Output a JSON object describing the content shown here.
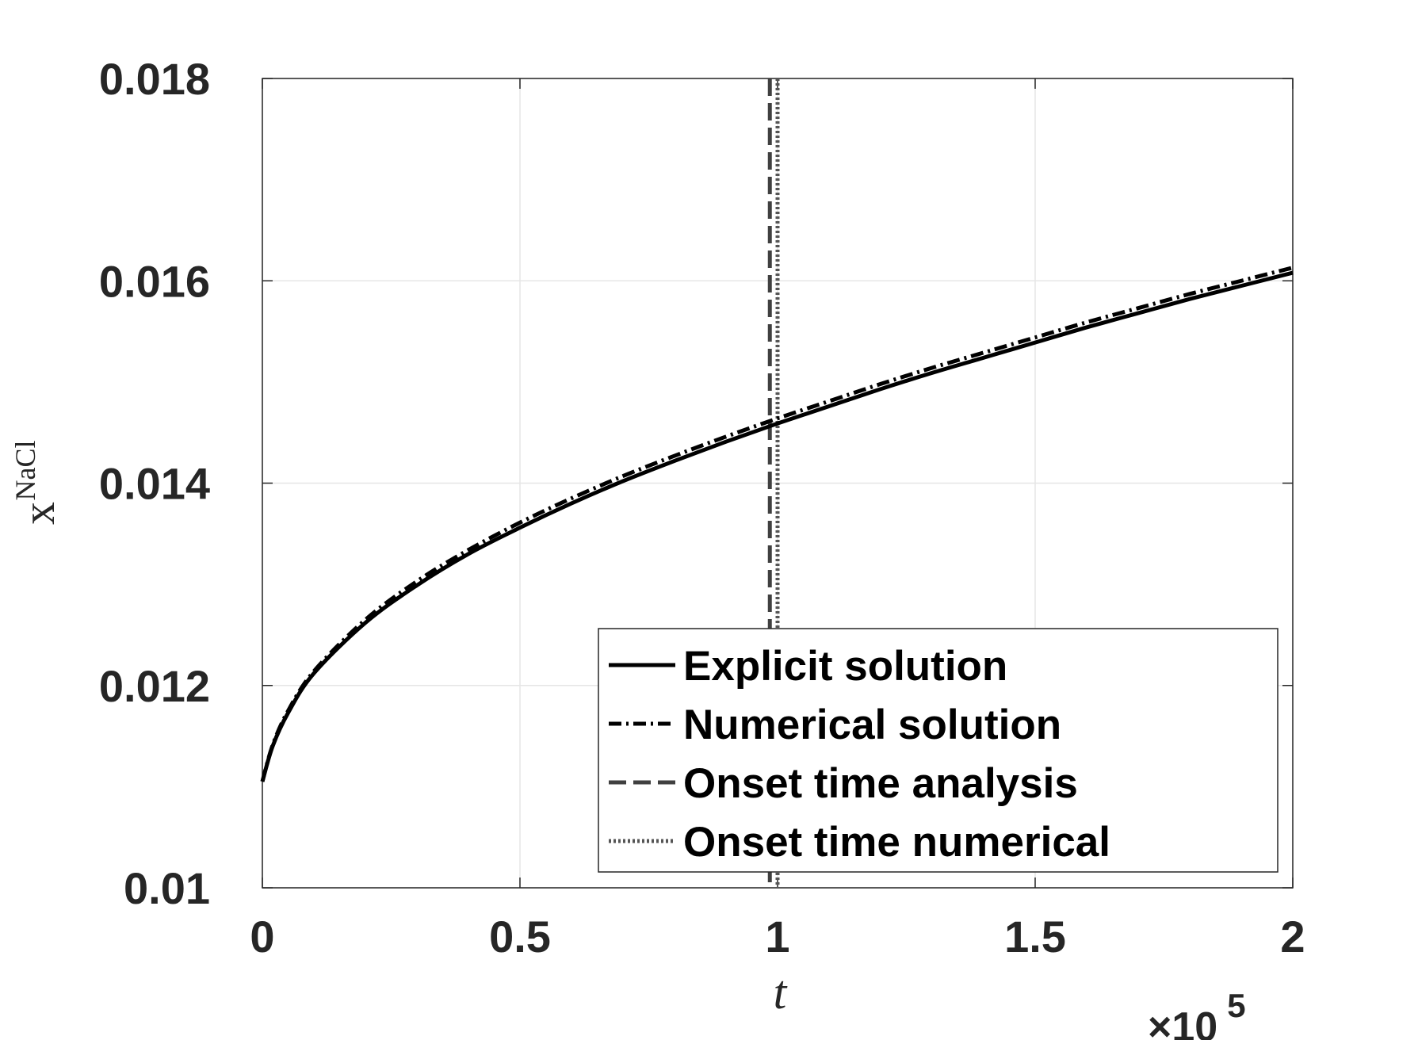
{
  "chart_data": {
    "type": "line",
    "title": "",
    "xlabel": "t",
    "ylabel": {
      "base": "x",
      "superscript": "NaCl"
    },
    "x_exponent_label": {
      "prefix": "×10",
      "power": "5"
    },
    "xlim": [
      0,
      2
    ],
    "ylim": [
      0.01,
      0.018
    ],
    "x_scale_factor": 100000,
    "grid": true,
    "legend_position": "bottom-right",
    "xticks": [
      {
        "value": 0,
        "label": "0"
      },
      {
        "value": 0.5,
        "label": "0.5"
      },
      {
        "value": 1,
        "label": "1"
      },
      {
        "value": 1.5,
        "label": "1.5"
      },
      {
        "value": 2,
        "label": "2"
      }
    ],
    "yticks": [
      {
        "value": 0.01,
        "label": "0.01"
      },
      {
        "value": 0.012,
        "label": "0.012"
      },
      {
        "value": 0.014,
        "label": "0.014"
      },
      {
        "value": 0.016,
        "label": "0.016"
      },
      {
        "value": 0.018,
        "label": "0.018"
      }
    ],
    "series": [
      {
        "name": "Explicit solution",
        "kind": "curve",
        "style": "solid",
        "color": "#000000",
        "x": [
          0,
          0.02,
          0.05,
          0.1,
          0.2,
          0.3,
          0.4,
          0.5,
          0.6,
          0.7,
          0.8,
          0.9,
          1.0,
          1.1,
          1.2,
          1.3,
          1.4,
          1.5,
          1.6,
          1.7,
          1.8,
          1.9,
          2.0
        ],
        "y": [
          0.01105,
          0.0114,
          0.01173,
          0.01212,
          0.01262,
          0.01299,
          0.0133,
          0.01356,
          0.0138,
          0.01402,
          0.01422,
          0.01441,
          0.01459,
          0.01476,
          0.01493,
          0.01509,
          0.01524,
          0.01539,
          0.01554,
          0.01568,
          0.01582,
          0.01595,
          0.01608
        ]
      },
      {
        "name": "Numerical solution",
        "kind": "curve",
        "style": "dashdot",
        "color": "#000000",
        "x": [
          0,
          0.02,
          0.05,
          0.1,
          0.2,
          0.3,
          0.4,
          0.5,
          0.6,
          0.7,
          0.8,
          0.9,
          1.0,
          1.1,
          1.2,
          1.3,
          1.4,
          1.5,
          1.6,
          1.7,
          1.8,
          1.9,
          2.0
        ],
        "y": [
          0.01105,
          0.01141,
          0.01175,
          0.01214,
          0.01265,
          0.01303,
          0.01334,
          0.01361,
          0.01385,
          0.01407,
          0.01427,
          0.01446,
          0.01464,
          0.01481,
          0.01498,
          0.01514,
          0.01529,
          0.01544,
          0.01559,
          0.01573,
          0.01587,
          0.016,
          0.01613
        ]
      },
      {
        "name": "Onset time analysis",
        "kind": "vline",
        "style": "dashed",
        "color": "#404040",
        "x": 0.985
      },
      {
        "name": "Onset time numerical",
        "kind": "vline",
        "style": "dotted",
        "color": "#555555",
        "x": 1.0
      }
    ]
  }
}
